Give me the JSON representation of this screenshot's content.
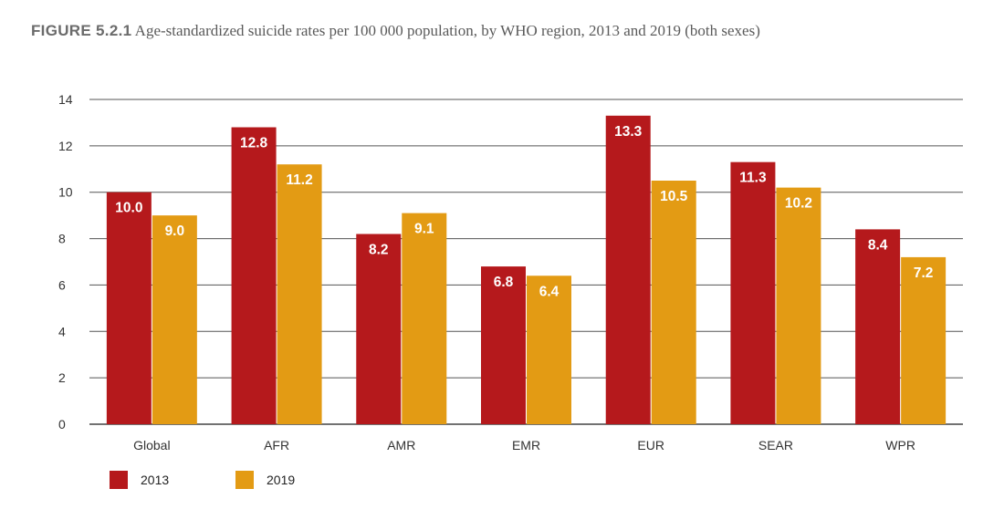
{
  "figure": {
    "label": "FIGURE 5.2.1",
    "caption": "Age-standardized suicide rates per 100 000 population, by WHO region, 2013 and 2019 (both sexes)"
  },
  "chart_data": {
    "type": "bar",
    "title": "FIGURE 5.2.1 Age-standardized suicide rates per 100 000 population, by WHO region, 2013 and 2019 (both sexes)",
    "categories": [
      "Global",
      "AFR",
      "AMR",
      "EMR",
      "EUR",
      "SEAR",
      "WPR"
    ],
    "series": [
      {
        "name": "2013",
        "color": "#b5191c",
        "values": [
          10.0,
          12.8,
          8.2,
          6.8,
          13.3,
          11.3,
          8.4
        ]
      },
      {
        "name": "2019",
        "color": "#e39b14",
        "values": [
          9.0,
          11.2,
          9.1,
          6.4,
          10.5,
          10.2,
          7.2
        ]
      }
    ],
    "ylim": [
      0,
      14
    ],
    "yticks": [
      0,
      2,
      4,
      6,
      8,
      10,
      12,
      14
    ],
    "xlabel": "",
    "ylabel": "",
    "grid": true,
    "legend_position": "bottom-left"
  }
}
